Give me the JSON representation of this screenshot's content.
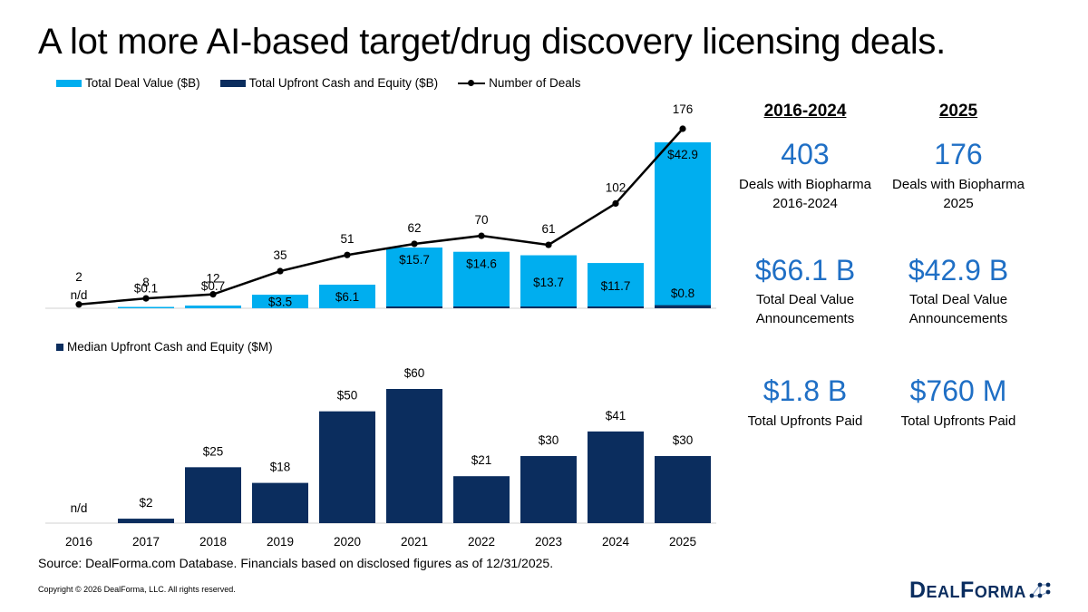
{
  "title": "A lot more AI-based target/drug discovery licensing deals.",
  "colors": {
    "light_bar": "#00aeef",
    "dark_bar": "#0b2d5e",
    "line": "#000000",
    "stat_blue": "#1f6fc5"
  },
  "top_legend": {
    "total_deal_value": "Total Deal Value ($B)",
    "upfront": "Total Upfront Cash and Equity ($B)",
    "deals": "Number of Deals"
  },
  "bottom_legend": {
    "median": "Median Upfront Cash and Equity ($M)"
  },
  "chart_data": [
    {
      "type": "bar",
      "title": "",
      "categories": [
        "2016",
        "2017",
        "2018",
        "2019",
        "2020",
        "2021",
        "2022",
        "2023",
        "2024",
        "2025"
      ],
      "series": [
        {
          "name": "Total Deal Value ($B)",
          "values": [
            0,
            0.1,
            0.7,
            3.5,
            6.1,
            15.7,
            14.6,
            13.7,
            11.7,
            42.9
          ],
          "labels": [
            "n/d",
            "$0.1",
            "$0.7",
            "$3.5",
            "$6.1",
            "$15.7",
            "$14.6",
            "$13.7",
            "$11.7",
            "$42.9"
          ]
        },
        {
          "name": "Total Upfront Cash and Equity ($B)",
          "values": [
            0,
            0,
            0,
            0,
            0,
            0.3,
            0.2,
            0.2,
            0.2,
            0.8
          ],
          "labels": [
            "",
            "",
            "",
            "",
            "",
            "",
            "",
            "",
            "",
            "$0.8"
          ]
        },
        {
          "name": "Number of Deals",
          "type": "line",
          "values": [
            2,
            8,
            12,
            35,
            51,
            62,
            70,
            61,
            102,
            176
          ],
          "labels": [
            "2",
            "8",
            "12",
            "35",
            "51",
            "62",
            "70",
            "61",
            "102",
            "176"
          ]
        }
      ],
      "ylim": [
        0,
        45
      ],
      "y2lim": [
        0,
        176
      ]
    },
    {
      "type": "bar",
      "title": "",
      "categories": [
        "2016",
        "2017",
        "2018",
        "2019",
        "2020",
        "2021",
        "2022",
        "2023",
        "2024",
        "2025"
      ],
      "series": [
        {
          "name": "Median Upfront Cash and Equity ($M)",
          "values": [
            0,
            2,
            25,
            18,
            50,
            60,
            21,
            30,
            41,
            30
          ],
          "labels": [
            "n/d",
            "$2",
            "$25",
            "$18",
            "$50",
            "$60",
            "$21",
            "$30",
            "$41",
            "$30"
          ]
        }
      ],
      "ylim": [
        0,
        60
      ]
    }
  ],
  "stats": {
    "col1": {
      "header": "2016-2024",
      "deals": "403",
      "deals_desc1": "Deals with Biopharma",
      "deals_desc2": "2016-2024",
      "value": "$66.1 B",
      "value_desc1": "Total Deal Value",
      "value_desc2": "Announcements",
      "upfront": "$1.8 B",
      "upfront_desc": "Total Upfronts Paid"
    },
    "col2": {
      "header": "2025",
      "deals": "176",
      "deals_desc1": "Deals with Biopharma",
      "deals_desc2": "2025",
      "value": "$42.9 B",
      "value_desc1": "Total Deal Value",
      "value_desc2": "Announcements",
      "upfront": "$760 M",
      "upfront_desc": "Total Upfronts Paid"
    }
  },
  "source": "Source: DealForma.com Database. Financials based on disclosed figures as of 12/31/2025.",
  "copyright": "Copyright © 2026 DealForma, LLC. All rights reserved.",
  "logo": {
    "text": "DealForma",
    "icon": "network-dots-icon"
  }
}
